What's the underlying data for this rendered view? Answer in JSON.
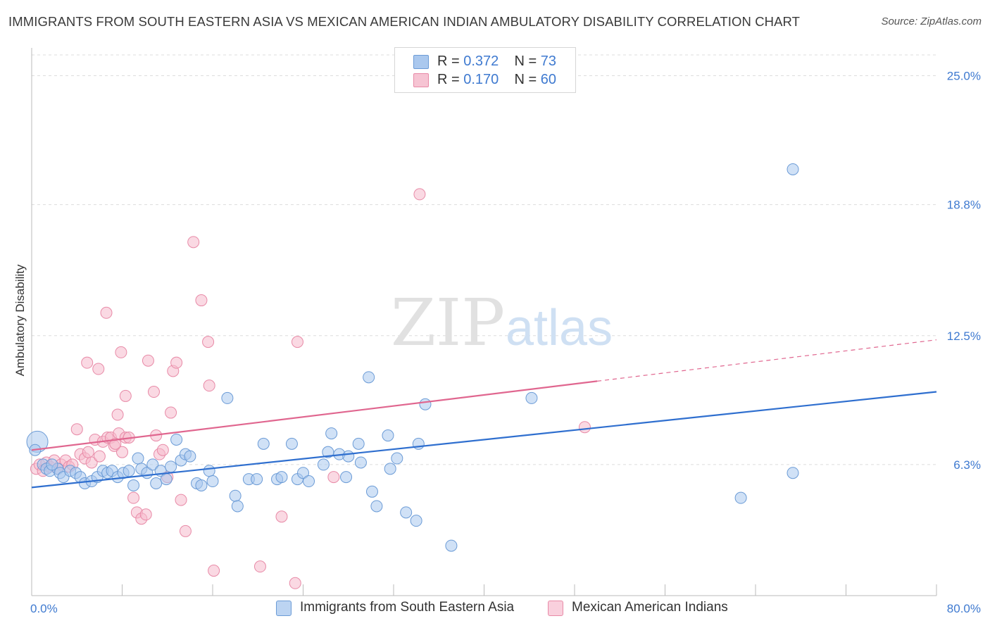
{
  "header": {
    "title": "IMMIGRANTS FROM SOUTH EASTERN ASIA VS MEXICAN AMERICAN INDIAN AMBULATORY DISABILITY CORRELATION CHART",
    "source": "Source: ZipAtlas.com"
  },
  "watermark": {
    "zip": "ZIP",
    "atlas": "atlas"
  },
  "legend_top": {
    "rows": [
      {
        "r_label": "R =",
        "r_value": "0.372",
        "n_label": "N =",
        "n_value": "73"
      },
      {
        "r_label": "R =",
        "r_value": "0.170",
        "n_label": "N =",
        "n_value": "60"
      }
    ]
  },
  "legend_bottom": {
    "items": [
      "Immigrants from South Eastern Asia",
      "Mexican American Indians"
    ]
  },
  "colors": {
    "blue_fill": "#aac8ee",
    "blue_stroke": "#6b9bd6",
    "blue_line": "#2f6fcf",
    "pink_fill": "#f6b9cc",
    "pink_stroke": "#e88aa7",
    "pink_line": "#e0668f",
    "tick_text": "#3f7ad0",
    "grid": "#dddddd"
  },
  "chart_data": {
    "type": "scatter",
    "title": "IMMIGRANTS FROM SOUTH EASTERN ASIA VS MEXICAN AMERICAN INDIAN AMBULATORY DISABILITY CORRELATION CHART",
    "xlabel": "",
    "ylabel": "Ambulatory Disability",
    "xlim": [
      0,
      80
    ],
    "ylim": [
      0,
      26
    ],
    "x_tick_labels": [
      "0.0%",
      "80.0%"
    ],
    "y_ticks": [
      6.3,
      12.5,
      18.8,
      25.0
    ],
    "y_tick_labels": [
      "6.3%",
      "12.5%",
      "18.8%",
      "25.0%"
    ],
    "grid": "horizontal dashed",
    "legend_position": "top-center",
    "series": [
      {
        "name": "Immigrants from South Eastern Asia",
        "color": "blue",
        "r": 0.372,
        "n": 73,
        "trend": {
          "x0": 0,
          "y0": 5.2,
          "x1": 80,
          "y1": 9.8,
          "dashed_from": null
        },
        "points": [
          [
            0.5,
            7.4
          ],
          [
            1.0,
            6.3
          ],
          [
            1.3,
            6.1
          ],
          [
            1.6,
            6.0
          ],
          [
            2.3,
            6.1
          ],
          [
            2.5,
            5.9
          ],
          [
            2.8,
            5.7
          ],
          [
            3.4,
            6.0
          ],
          [
            3.9,
            5.9
          ],
          [
            4.3,
            5.7
          ],
          [
            4.7,
            5.4
          ],
          [
            5.3,
            5.5
          ],
          [
            5.8,
            5.7
          ],
          [
            6.3,
            6.0
          ],
          [
            6.7,
            5.9
          ],
          [
            7.1,
            6.0
          ],
          [
            7.6,
            5.7
          ],
          [
            8.1,
            5.9
          ],
          [
            8.6,
            6.0
          ],
          [
            9.0,
            5.3
          ],
          [
            9.4,
            6.6
          ],
          [
            9.7,
            6.1
          ],
          [
            10.2,
            5.9
          ],
          [
            10.7,
            6.3
          ],
          [
            11.0,
            5.4
          ],
          [
            11.4,
            6.0
          ],
          [
            11.9,
            5.6
          ],
          [
            12.3,
            6.2
          ],
          [
            12.8,
            7.5
          ],
          [
            13.2,
            6.5
          ],
          [
            13.6,
            6.8
          ],
          [
            14.0,
            6.7
          ],
          [
            14.6,
            5.4
          ],
          [
            15.0,
            5.3
          ],
          [
            15.7,
            6.0
          ],
          [
            16.0,
            5.5
          ],
          [
            17.3,
            9.5
          ],
          [
            18.0,
            4.8
          ],
          [
            18.2,
            4.3
          ],
          [
            19.2,
            5.6
          ],
          [
            19.9,
            5.6
          ],
          [
            20.5,
            7.3
          ],
          [
            21.7,
            5.6
          ],
          [
            22.1,
            5.7
          ],
          [
            23.0,
            7.3
          ],
          [
            23.5,
            5.6
          ],
          [
            24.0,
            5.9
          ],
          [
            24.5,
            5.5
          ],
          [
            25.8,
            6.3
          ],
          [
            26.2,
            6.9
          ],
          [
            26.5,
            7.8
          ],
          [
            27.2,
            6.8
          ],
          [
            27.8,
            5.7
          ],
          [
            28.0,
            6.7
          ],
          [
            28.9,
            7.3
          ],
          [
            29.1,
            6.4
          ],
          [
            29.8,
            10.5
          ],
          [
            30.1,
            5.0
          ],
          [
            30.5,
            4.3
          ],
          [
            31.5,
            7.7
          ],
          [
            31.7,
            6.1
          ],
          [
            32.3,
            6.6
          ],
          [
            33.1,
            4.0
          ],
          [
            34.0,
            3.6
          ],
          [
            34.2,
            7.3
          ],
          [
            34.8,
            9.2
          ],
          [
            37.1,
            2.4
          ],
          [
            44.2,
            9.5
          ],
          [
            62.7,
            4.7
          ],
          [
            67.3,
            5.9
          ],
          [
            67.3,
            20.5
          ],
          [
            0.3,
            7.0
          ],
          [
            1.8,
            6.3
          ]
        ]
      },
      {
        "name": "Mexican American Indians",
        "color": "pink",
        "r": 0.17,
        "n": 60,
        "trend": {
          "x0": 0,
          "y0": 7.0,
          "x1": 80,
          "y1": 12.3,
          "dashed_from": 50
        },
        "points": [
          [
            0.4,
            6.1
          ],
          [
            0.7,
            6.3
          ],
          [
            1.0,
            6.0
          ],
          [
            1.3,
            6.4
          ],
          [
            1.6,
            6.2
          ],
          [
            2.0,
            6.5
          ],
          [
            2.3,
            6.1
          ],
          [
            2.6,
            6.3
          ],
          [
            3.0,
            6.5
          ],
          [
            3.3,
            6.2
          ],
          [
            3.6,
            6.3
          ],
          [
            4.0,
            8.0
          ],
          [
            4.3,
            6.8
          ],
          [
            4.7,
            6.6
          ],
          [
            5.0,
            6.9
          ],
          [
            5.3,
            6.4
          ],
          [
            5.6,
            7.5
          ],
          [
            6.0,
            6.7
          ],
          [
            6.3,
            7.4
          ],
          [
            6.7,
            7.6
          ],
          [
            7.0,
            7.6
          ],
          [
            7.3,
            7.2
          ],
          [
            7.7,
            7.8
          ],
          [
            8.0,
            6.9
          ],
          [
            8.3,
            7.6
          ],
          [
            4.9,
            11.2
          ],
          [
            5.9,
            10.9
          ],
          [
            6.6,
            13.6
          ],
          [
            7.4,
            7.3
          ],
          [
            7.6,
            8.7
          ],
          [
            7.9,
            11.7
          ],
          [
            8.3,
            9.6
          ],
          [
            8.6,
            7.6
          ],
          [
            9.0,
            4.7
          ],
          [
            9.3,
            4.0
          ],
          [
            9.7,
            3.7
          ],
          [
            10.1,
            3.9
          ],
          [
            10.3,
            11.3
          ],
          [
            10.8,
            9.8
          ],
          [
            11.0,
            7.7
          ],
          [
            11.3,
            6.8
          ],
          [
            11.6,
            7.0
          ],
          [
            12.0,
            5.7
          ],
          [
            12.3,
            8.8
          ],
          [
            12.5,
            10.8
          ],
          [
            12.8,
            11.2
          ],
          [
            13.2,
            4.6
          ],
          [
            13.6,
            3.1
          ],
          [
            14.3,
            17.0
          ],
          [
            15.0,
            14.2
          ],
          [
            15.6,
            12.2
          ],
          [
            15.7,
            10.1
          ],
          [
            16.1,
            1.2
          ],
          [
            20.2,
            1.4
          ],
          [
            22.1,
            3.8
          ],
          [
            23.3,
            0.6
          ],
          [
            23.5,
            12.2
          ],
          [
            26.7,
            5.7
          ],
          [
            34.3,
            19.3
          ],
          [
            48.9,
            8.1
          ]
        ]
      }
    ]
  }
}
